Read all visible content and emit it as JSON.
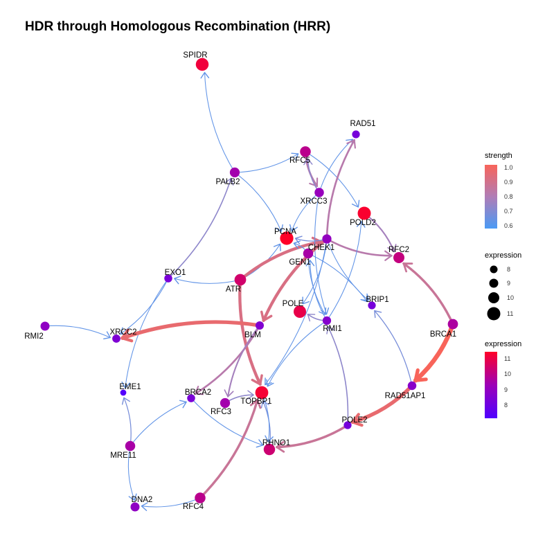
{
  "title": "HDR through Homologous Recombination (HRR)",
  "colors": {
    "strength_low": "#4a9af5",
    "strength_mid": "#b07db6",
    "strength_high": "#f8645a",
    "expression_low": "#4f00ff",
    "expression_mid": "#9c00b7",
    "expression_high": "#ff0028"
  },
  "nodes": [
    {
      "id": "SPIDR",
      "expression": 11.2
    },
    {
      "id": "RAD51",
      "expression": 8.3
    },
    {
      "id": "RFC5",
      "expression": 10.0
    },
    {
      "id": "PALB2",
      "expression": 9.5
    },
    {
      "id": "XRCC3",
      "expression": 9.2
    },
    {
      "id": "POLD2",
      "expression": 11.4
    },
    {
      "id": "PCNA",
      "expression": 11.5
    },
    {
      "id": "CHEK1",
      "expression": 9.1
    },
    {
      "id": "RFC2",
      "expression": 10.2
    },
    {
      "id": "GEN1",
      "expression": 9.6
    },
    {
      "id": "EXO1",
      "expression": 8.4
    },
    {
      "id": "ATR",
      "expression": 10.5
    },
    {
      "id": "BRIP1",
      "expression": 8.3
    },
    {
      "id": "POLE",
      "expression": 11.0
    },
    {
      "id": "RMI2",
      "expression": 9.0
    },
    {
      "id": "XRCC2",
      "expression": 8.5
    },
    {
      "id": "BLM",
      "expression": 8.6
    },
    {
      "id": "RMI1",
      "expression": 8.7
    },
    {
      "id": "BRCA1",
      "expression": 9.7
    },
    {
      "id": "EME1",
      "expression": 7.3
    },
    {
      "id": "TOPBP1",
      "expression": 11.3
    },
    {
      "id": "RAD51AP1",
      "expression": 8.8
    },
    {
      "id": "BRCA2",
      "expression": 8.4
    },
    {
      "id": "RFC3",
      "expression": 9.5
    },
    {
      "id": "POLE2",
      "expression": 8.3
    },
    {
      "id": "RHNO1",
      "expression": 10.4
    },
    {
      "id": "MRE11",
      "expression": 9.6
    },
    {
      "id": "RFC4",
      "expression": 10.0
    },
    {
      "id": "DNA2",
      "expression": 9.0
    }
  ],
  "edges": [
    {
      "from": "PALB2",
      "to": "SPIDR",
      "strength": 0.6
    },
    {
      "from": "PALB2",
      "to": "RFC5",
      "strength": 0.6
    },
    {
      "from": "PALB2",
      "to": "PCNA",
      "strength": 0.6
    },
    {
      "from": "EXO1",
      "to": "PALB2",
      "strength": 0.7
    },
    {
      "from": "EXO1",
      "to": "XRCC2",
      "strength": 0.6
    },
    {
      "from": "EXO1",
      "to": "EME1",
      "strength": 0.6
    },
    {
      "from": "ATR",
      "to": "EXO1",
      "strength": 0.6
    },
    {
      "from": "ATR",
      "to": "PCNA",
      "strength": 0.6
    },
    {
      "from": "ATR",
      "to": "CHEK1",
      "strength": 0.9
    },
    {
      "from": "ATR",
      "to": "TOPBP1",
      "strength": 0.9
    },
    {
      "from": "RMI2",
      "to": "XRCC2",
      "strength": 0.6
    },
    {
      "from": "BLM",
      "to": "XRCC2",
      "strength": 0.95
    },
    {
      "from": "BLM",
      "to": "BRCA2",
      "strength": 0.8
    },
    {
      "from": "BLM",
      "to": "RFC3",
      "strength": 0.75
    },
    {
      "from": "RFC5",
      "to": "POLD2",
      "strength": 0.6
    },
    {
      "from": "RFC5",
      "to": "XRCC3",
      "strength": 0.8
    },
    {
      "from": "XRCC3",
      "to": "RFC5",
      "strength": 0.7
    },
    {
      "from": "XRCC3",
      "to": "PCNA",
      "strength": 0.6
    },
    {
      "from": "XRCC3",
      "to": "RAD51",
      "strength": 0.6
    },
    {
      "from": "XRCC3",
      "to": "RMI1",
      "strength": 0.6
    },
    {
      "from": "CHEK1",
      "to": "RAD51",
      "strength": 0.8
    },
    {
      "from": "CHEK1",
      "to": "RFC2",
      "strength": 0.8
    },
    {
      "from": "CHEK1",
      "to": "PCNA",
      "strength": 0.65
    },
    {
      "from": "CHEK1",
      "to": "BRIP1",
      "strength": 0.6
    },
    {
      "from": "CHEK1",
      "to": "POLE",
      "strength": 0.6
    },
    {
      "from": "CHEK1",
      "to": "BLM",
      "strength": 0.9
    },
    {
      "from": "CHEK1",
      "to": "TOPBP1",
      "strength": 0.6
    },
    {
      "from": "GEN1",
      "to": "PCNA",
      "strength": 0.6
    },
    {
      "from": "GEN1",
      "to": "BRIP1",
      "strength": 0.6
    },
    {
      "from": "GEN1",
      "to": "RMI1",
      "strength": 0.6
    },
    {
      "from": "RMI1",
      "to": "POLE",
      "strength": 0.7
    },
    {
      "from": "RMI1",
      "to": "POLD2",
      "strength": 0.6
    },
    {
      "from": "RMI1",
      "to": "GEN1",
      "strength": 0.6
    },
    {
      "from": "RMI1",
      "to": "TOPBP1",
      "strength": 0.6
    },
    {
      "from": "POLD2",
      "to": "RFC2",
      "strength": 0.75
    },
    {
      "from": "BRCA1",
      "to": "RFC2",
      "strength": 0.85
    },
    {
      "from": "BRCA1",
      "to": "RAD51AP1",
      "strength": 1.0
    },
    {
      "from": "RAD51AP1",
      "to": "BRIP1",
      "strength": 0.65
    },
    {
      "from": "RAD51AP1",
      "to": "POLE2",
      "strength": 0.95
    },
    {
      "from": "POLE2",
      "to": "RMI1",
      "strength": 0.7
    },
    {
      "from": "POLE2",
      "to": "RHNO1",
      "strength": 0.85
    },
    {
      "from": "BRCA2",
      "to": "RHNO1",
      "strength": 0.6
    },
    {
      "from": "RFC3",
      "to": "TOPBP1",
      "strength": 0.7
    },
    {
      "from": "RHNO1",
      "to": "TOPBP1",
      "strength": 0.65
    },
    {
      "from": "TOPBP1",
      "to": "RHNO1",
      "strength": 0.6
    },
    {
      "from": "MRE11",
      "to": "EME1",
      "strength": 0.65
    },
    {
      "from": "MRE11",
      "to": "BRCA2",
      "strength": 0.6
    },
    {
      "from": "MRE11",
      "to": "DNA2",
      "strength": 0.6
    },
    {
      "from": "RFC4",
      "to": "DNA2",
      "strength": 0.6
    },
    {
      "from": "RFC4",
      "to": "TOPBP1",
      "strength": 0.85
    }
  ],
  "legend": {
    "strength_title": "strength",
    "strength_ticks": [
      "1.0",
      "0.9",
      "0.8",
      "0.7",
      "0.6"
    ],
    "size_title": "expression",
    "size_ticks": [
      "8",
      "9",
      "10",
      "11"
    ],
    "color_title": "expression",
    "color_ticks": [
      "11",
      "10",
      "9",
      "8"
    ]
  }
}
